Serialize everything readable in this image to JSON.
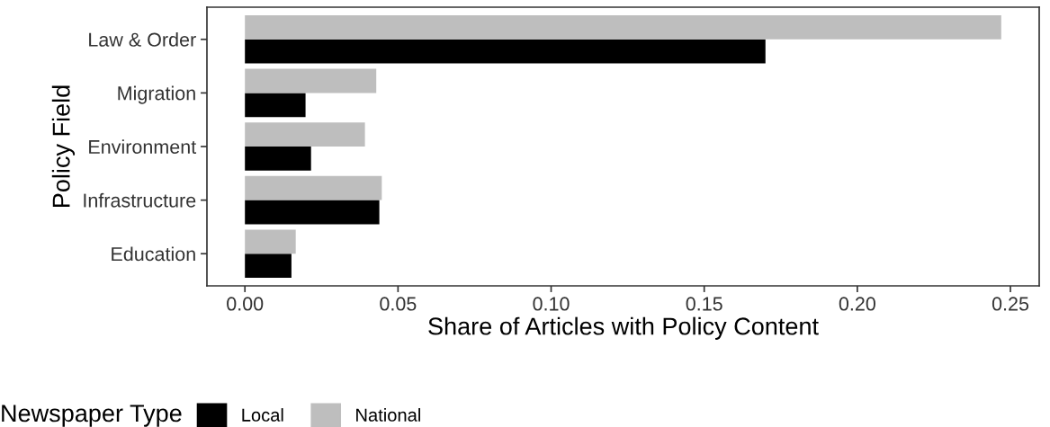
{
  "chart_data": {
    "type": "bar",
    "orientation": "horizontal",
    "categories": [
      "Law & Order",
      "Migration",
      "Environment",
      "Infrastructure",
      "Education"
    ],
    "series": [
      {
        "name": "Local",
        "color": "#000000",
        "values": [
          0.17,
          0.0198,
          0.0216,
          0.0439,
          0.0152
        ]
      },
      {
        "name": "National",
        "color": "#bebebe",
        "values": [
          0.247,
          0.0429,
          0.0392,
          0.0447,
          0.0166
        ]
      }
    ],
    "xlabel": "Share of Articles with Policy Content",
    "ylabel": "Policy Field",
    "legend_title": "Newspaper Type",
    "xlim": [
      -0.0124,
      0.2594
    ],
    "xticks": [
      {
        "value": 0,
        "label": "0.00"
      },
      {
        "value": 0.05,
        "label": "0.05"
      },
      {
        "value": 0.1,
        "label": "0.10"
      },
      {
        "value": 0.15,
        "label": "0.15"
      },
      {
        "value": 0.2,
        "label": "0.20"
      },
      {
        "value": 0.25,
        "label": "0.25"
      }
    ],
    "grid": false,
    "legend": "bottom"
  }
}
